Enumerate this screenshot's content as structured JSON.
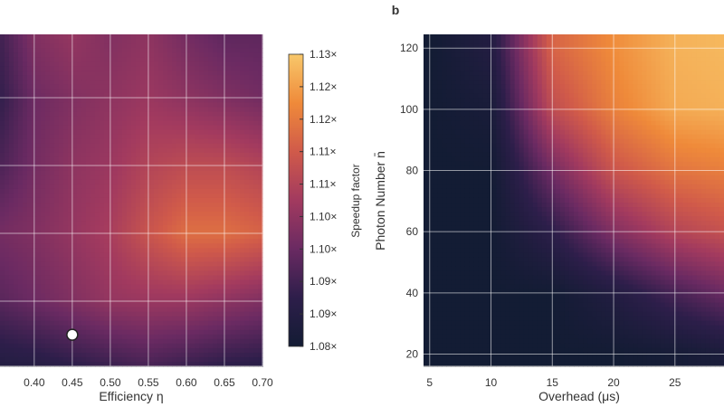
{
  "chart_data": [
    {
      "type": "heatmap",
      "panel_label": "",
      "xlabel": "Efficiency η",
      "ylabel": "",
      "x": [
        0.35,
        0.4,
        0.45,
        0.5,
        0.55,
        0.6,
        0.65,
        0.7
      ],
      "xticks": [
        "0.40",
        "0.45",
        "0.50",
        "0.55",
        "0.60",
        "0.65",
        "0.70"
      ],
      "xtick_values": [
        0.4,
        0.45,
        0.5,
        0.55,
        0.6,
        0.65,
        0.7
      ],
      "xlim": [
        0.355,
        0.7
      ],
      "z_rows_top_to_bottom": [
        [
          1.09,
          1.1,
          1.103,
          1.1,
          1.102,
          1.098,
          1.095,
          1.095
        ],
        [
          1.088,
          1.097,
          1.1,
          1.102,
          1.104,
          1.102,
          1.1,
          1.098
        ],
        [
          1.092,
          1.098,
          1.102,
          1.104,
          1.108,
          1.11,
          1.11,
          1.108
        ],
        [
          1.098,
          1.1,
          1.103,
          1.106,
          1.112,
          1.117,
          1.117,
          1.115
        ],
        [
          1.094,
          1.097,
          1.1,
          1.103,
          1.104,
          1.104,
          1.102,
          1.1
        ],
        [
          1.085,
          1.086,
          1.088,
          1.09,
          1.092,
          1.09,
          1.088,
          1.087
        ]
      ],
      "marker": {
        "x": 0.45,
        "row_fraction_from_top": 0.905,
        "color": "#ffffff"
      },
      "grid": true
    },
    {
      "type": "heatmap",
      "panel_label": "b",
      "xlabel": "Overhead (μs)",
      "ylabel": "Photon Number n̄",
      "x": [
        5,
        10,
        15,
        20,
        25,
        30
      ],
      "y": [
        120,
        100,
        80,
        60,
        40,
        20
      ],
      "xticks": [
        "5",
        "10",
        "15",
        "20",
        "25"
      ],
      "xtick_values": [
        5,
        10,
        15,
        20,
        25
      ],
      "yticks": [
        "120",
        "100",
        "80",
        "60",
        "40",
        "20"
      ],
      "ytick_values": [
        120,
        100,
        80,
        60,
        40,
        20
      ],
      "xlim": [
        4.5,
        29
      ],
      "ylim": [
        16,
        124.5
      ],
      "z_rows_top_to_bottom": [
        [
          1.08,
          1.085,
          1.115,
          1.122,
          1.127,
          1.128
        ],
        [
          1.08,
          1.082,
          1.11,
          1.12,
          1.126,
          1.127
        ],
        [
          1.08,
          1.08,
          1.098,
          1.112,
          1.118,
          1.12
        ],
        [
          1.08,
          1.08,
          1.088,
          1.1,
          1.108,
          1.112
        ],
        [
          1.08,
          1.08,
          1.08,
          1.085,
          1.092,
          1.098
        ],
        [
          1.08,
          1.08,
          1.08,
          1.08,
          1.081,
          1.083
        ]
      ],
      "grid": true
    }
  ],
  "colorbar": {
    "label": "Speedup factor",
    "range": [
      1.08,
      1.13
    ],
    "ticks": [
      "1.13×",
      "1.12×",
      "1.12×",
      "1.11×",
      "1.11×",
      "1.10×",
      "1.10×",
      "1.09×",
      "1.09×",
      "1.08×"
    ],
    "colors": [
      "#131c34",
      "#2d1e4a",
      "#6a2a62",
      "#a23a5f",
      "#d05a4a",
      "#ef8a3a",
      "#f8c86b"
    ]
  }
}
